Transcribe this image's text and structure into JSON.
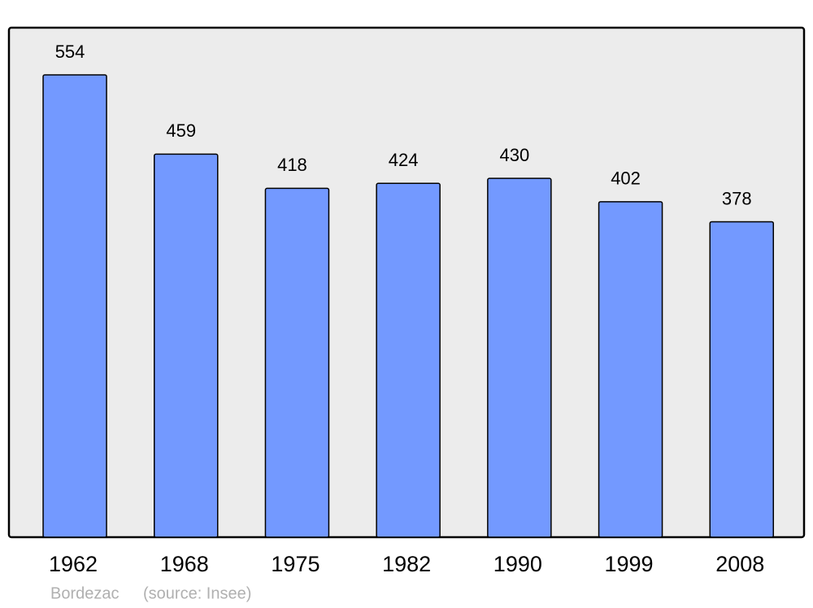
{
  "chart_data": {
    "type": "bar",
    "categories": [
      "1962",
      "1968",
      "1975",
      "1982",
      "1990",
      "1999",
      "2008"
    ],
    "values": [
      554,
      459,
      418,
      424,
      430,
      402,
      378
    ],
    "color": "#7399ff",
    "caption": "Bordezac",
    "source": "(source: Insee)"
  }
}
